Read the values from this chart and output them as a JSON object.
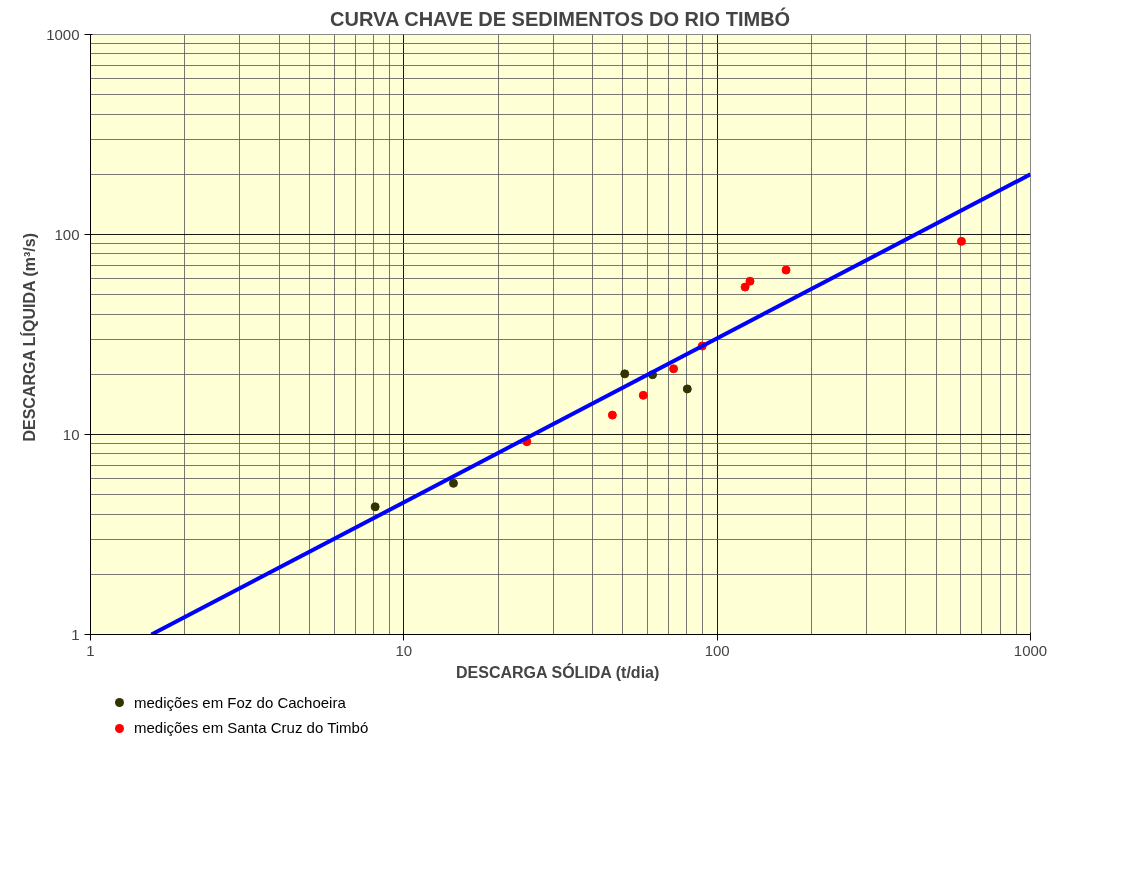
{
  "chart_data": {
    "type": "scatter",
    "title": "CURVA CHAVE DE SEDIMENTOS DO RIO TIMBÓ",
    "xlabel": "DESCARGA SÓLIDA  (t/dia)",
    "ylabel": "DESCARGA LÍQUIDA  (m³/s)",
    "log": "xy",
    "xlim": [
      1,
      1000
    ],
    "ylim": [
      1,
      1000
    ],
    "xticks": [
      1,
      10,
      100,
      1000
    ],
    "yticks": [
      1,
      10,
      100,
      1000
    ],
    "grid": true,
    "legend": "bottom left",
    "marker": "circle",
    "series": [
      {
        "name": "medições em Foz do Cachoeira",
        "color": "#333300",
        "x": [
          8.1,
          14.4,
          50.7,
          62.2,
          80.3
        ],
        "values": [
          4.35,
          5.7,
          20.1,
          19.9,
          16.9
        ]
      },
      {
        "name": "medições em Santa Cruz do Timbó",
        "color": "#ff0000",
        "x": [
          24.7,
          46.3,
          58.1,
          72.6,
          89.6,
          122.8,
          127.3,
          165.9,
          602
        ],
        "values": [
          9.2,
          12.5,
          15.7,
          21.3,
          27.7,
          54.6,
          58.4,
          66.4,
          92.4
        ]
      },
      {
        "type": "line",
        "color": "#0000ff",
        "line_style": "solid",
        "marker": "none",
        "x": [
          1.565,
          1000
        ],
        "values": [
          1,
          200
        ]
      }
    ]
  }
}
